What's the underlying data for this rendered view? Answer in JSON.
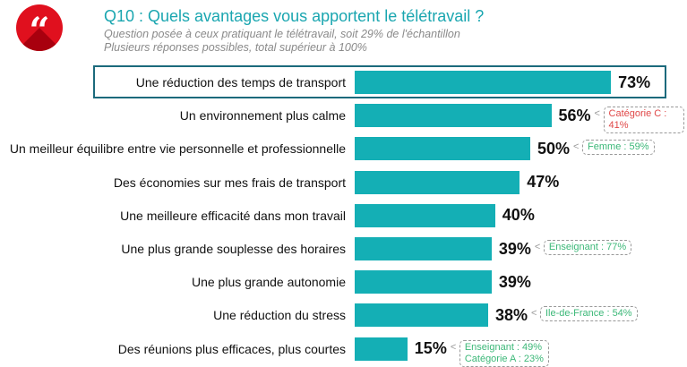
{
  "header": {
    "logo_glyph": "“",
    "title": "Q10 : Quels avantages vous apportent le télétravail ?",
    "subtitle1": "Question posée à ceux pratiquant le télétravail, soit 29% de l'échantillon",
    "subtitle2": "Plusieurs réponses possibles, total supérieur à 100%"
  },
  "colors": {
    "bar": "#14afb5",
    "highlight": "#1c6a7c",
    "red": "#e04848",
    "green": "#3cb878"
  },
  "chart_data": {
    "type": "bar",
    "orientation": "horizontal",
    "title": "Q10 : Quels avantages vous apportent le télétravail ?",
    "xlim": [
      0,
      100
    ],
    "highlighted": "Une réduction des temps de transport",
    "categories": [
      "Une réduction des temps de transport",
      "Un environnement plus calme",
      "Un meilleur équilibre entre vie personnelle et professionnelle",
      "Des économies sur mes frais de transport",
      "Une meilleure efficacité dans mon travail",
      "Une plus grande souplesse des horaires",
      "Une plus grande autonomie",
      "Une réduction du stress",
      "Des réunions plus efficaces, plus courtes"
    ],
    "values": [
      73,
      56,
      50,
      47,
      40,
      39,
      39,
      38,
      15
    ],
    "value_labels": [
      "73%",
      "56%",
      "50%",
      "47%",
      "40%",
      "39%",
      "39%",
      "38%",
      "15%"
    ],
    "annotations": [
      null,
      [
        {
          "text": "Catégorie C : 41%",
          "color": "red"
        }
      ],
      [
        {
          "text": "Femme : 59%",
          "color": "green"
        }
      ],
      null,
      null,
      [
        {
          "text": "Enseignant : 77%",
          "color": "green"
        }
      ],
      null,
      [
        {
          "text": "Ile-de-France : 54%",
          "color": "green"
        }
      ],
      [
        {
          "text": "Enseignant : 49%",
          "color": "green"
        },
        {
          "text": "Catégorie A : 23%",
          "color": "green"
        }
      ]
    ]
  }
}
